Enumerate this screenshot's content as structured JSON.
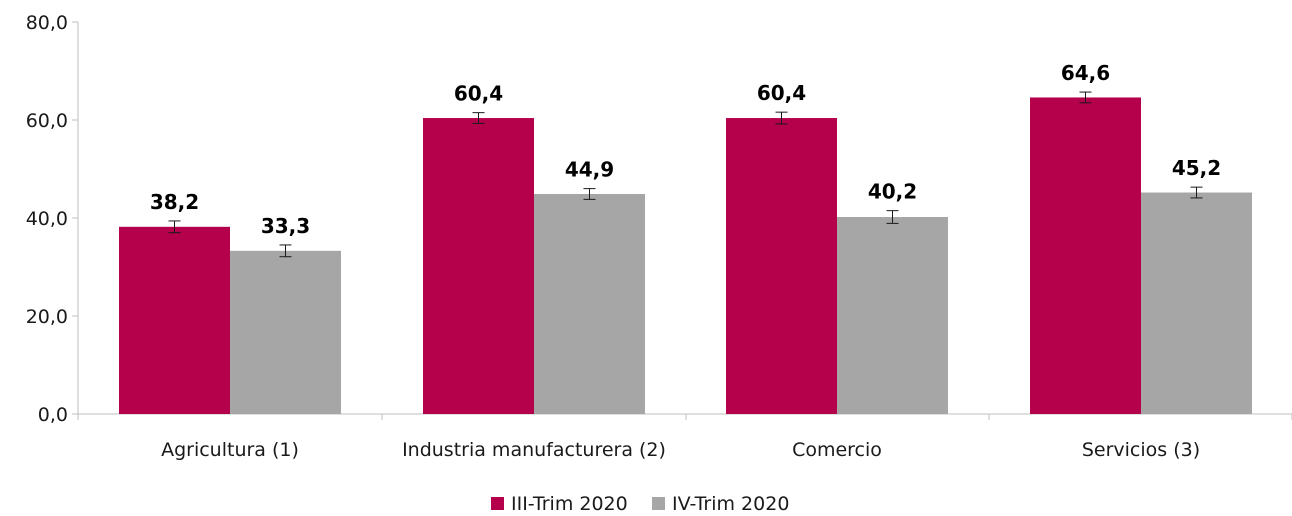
{
  "chart_data": {
    "type": "bar",
    "categories": [
      "Agricultura (1)",
      "Industria manufacturera (2)",
      "Comercio",
      "Servicios (3)"
    ],
    "series": [
      {
        "name": "III-Trim 2020",
        "color": "#b5004b",
        "values": [
          38.2,
          60.4,
          60.4,
          64.6
        ],
        "labels": [
          "38,2",
          "60,4",
          "60,4",
          "64,6"
        ],
        "error_low": [
          37.0,
          59.3,
          59.2,
          63.5
        ],
        "error_high": [
          39.4,
          61.5,
          61.6,
          65.7
        ]
      },
      {
        "name": "IV-Trim 2020",
        "color": "#a6a6a6",
        "values": [
          33.3,
          44.9,
          40.2,
          45.2
        ],
        "labels": [
          "33,3",
          "44,9",
          "40,2",
          "45,2"
        ],
        "error_low": [
          32.1,
          43.8,
          38.9,
          44.1
        ],
        "error_high": [
          34.5,
          46.0,
          41.5,
          46.3
        ]
      }
    ],
    "ylim": [
      0,
      80
    ],
    "yticks": [
      0,
      20,
      40,
      60,
      80
    ],
    "ytick_labels": [
      "0,0",
      "20,0",
      "40,0",
      "60,0",
      "80,0"
    ],
    "grid": false,
    "legend_position": "bottom-center",
    "title": "",
    "xlabel": "",
    "ylabel": ""
  }
}
